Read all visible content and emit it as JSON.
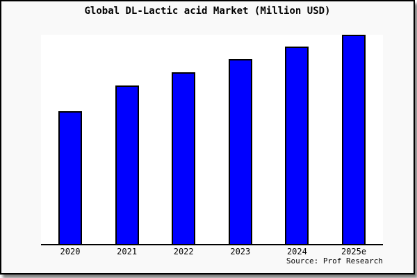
{
  "colors": {
    "bar_fill": "#0000ff",
    "bar_border": "#000000",
    "canvas_background": "#f9f9f9",
    "plot_background": "#ffffff",
    "axis": "#000000",
    "text": "#000000"
  },
  "chart_data": {
    "type": "bar",
    "title": "Global DL-Lactic acid Market (Million USD)",
    "categories": [
      "2020",
      "2021",
      "2022",
      "2023",
      "2024",
      "2025e"
    ],
    "values": [
      62.8,
      75.1,
      81.4,
      87.7,
      93.7,
      99.4
    ],
    "value_note": "relative bar heights in % of plot height; no y-axis scale shown in image",
    "xlabel": "",
    "ylabel": "",
    "ylim": [
      0,
      100
    ],
    "grid": false,
    "legend": false,
    "y_axis_visible": false,
    "annotation": "Source: Prof Research"
  }
}
